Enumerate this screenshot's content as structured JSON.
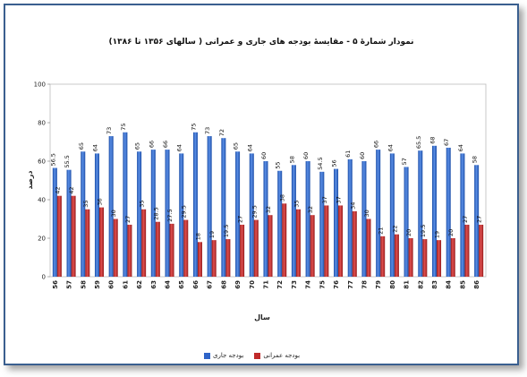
{
  "chart_data": {
    "type": "bar",
    "title": "نمودار شمارۀ ۵ - مقایسۀ بودجه های جاری و عمرانی ( سالهای ۱۳۵۶ تا ۱۳۸۶)",
    "xlabel": "سال",
    "ylabel": "درصد",
    "ylim": [
      0,
      100
    ],
    "yticks": [
      0,
      20,
      40,
      60,
      80,
      100
    ],
    "grid": false,
    "legend_position": "bottom",
    "categories": [
      "56",
      "57",
      "58",
      "59",
      "60",
      "61",
      "62",
      "63",
      "64",
      "65",
      "66",
      "67",
      "68",
      "69",
      "70",
      "71",
      "72",
      "73",
      "74",
      "75",
      "76",
      "77",
      "78",
      "79",
      "80",
      "81",
      "82",
      "83",
      "84",
      "85",
      "86"
    ],
    "series": [
      {
        "name": "بودجه جاری",
        "color": "#2f64c8",
        "values": [
          56.5,
          55.5,
          65,
          64,
          73,
          75,
          65,
          66,
          66,
          64,
          75,
          73,
          72,
          65,
          64,
          60,
          55,
          58,
          60,
          54.5,
          56,
          61,
          60,
          66,
          64,
          57,
          65.5,
          68,
          67,
          64,
          58
        ],
        "labels": [
          "56.5",
          "55.5",
          "65",
          "64",
          "73",
          "75",
          "65",
          "66",
          "66",
          "64",
          "75",
          "73",
          "72",
          "65",
          "64",
          "60",
          "55",
          "58",
          "60",
          "54.5",
          "56",
          "61",
          "60",
          "66",
          "64",
          "57",
          "65.5",
          "68",
          "67",
          "64",
          "58"
        ]
      },
      {
        "name": "بودجه عمرانی",
        "color": "#c02a2a",
        "values": [
          42,
          42,
          35,
          36,
          30,
          27,
          35,
          28.5,
          27.5,
          29.5,
          18,
          19,
          19.5,
          27,
          29.5,
          32,
          38,
          35,
          32,
          37,
          37,
          34,
          30,
          21,
          22,
          20,
          19.5,
          19,
          20,
          27,
          27
        ],
        "labels": [
          "42",
          "42",
          "35",
          "36",
          "30",
          "27",
          "35",
          "28.5",
          "27.5",
          "29.5",
          "18",
          "19",
          "19.5",
          "27",
          "29.5",
          "32",
          "38",
          "35",
          "32",
          "37",
          "37",
          "34",
          "30",
          "21",
          "22",
          "20",
          "19.5",
          "19",
          "20",
          "27",
          "27"
        ]
      }
    ]
  }
}
